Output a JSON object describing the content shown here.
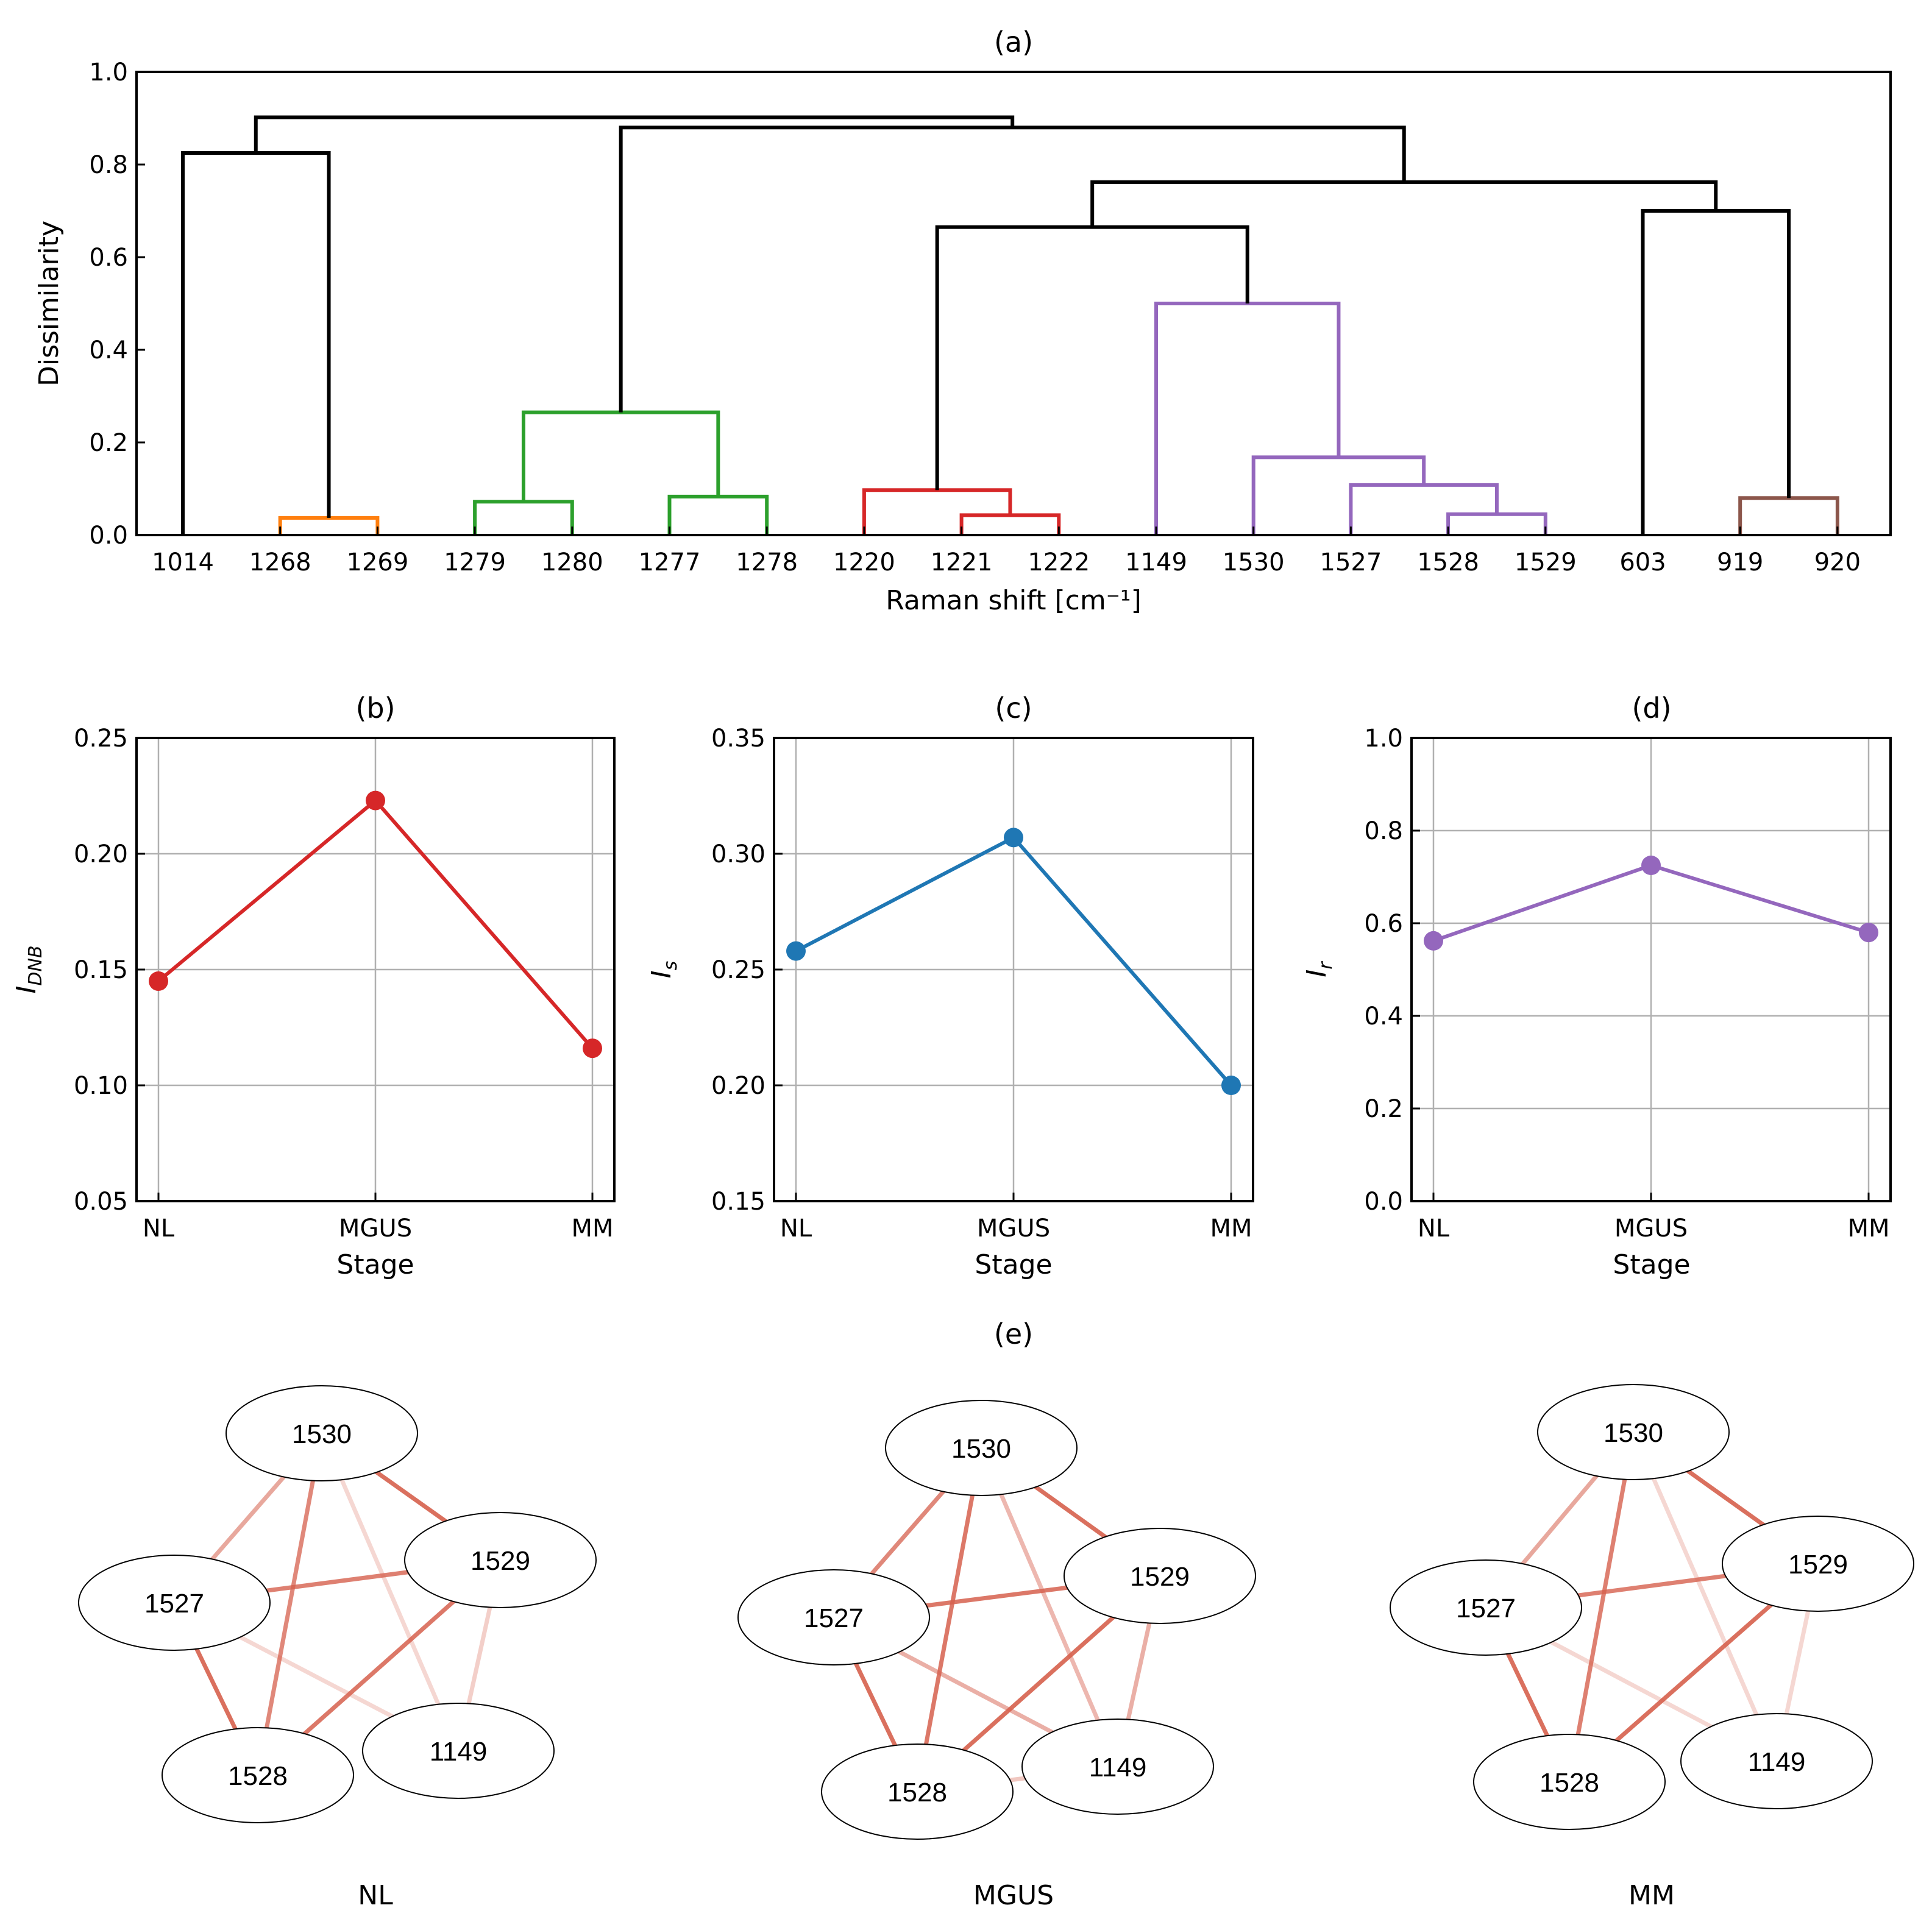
{
  "chart_data": [
    {
      "id": "a",
      "type": "dendrogram",
      "title": "(a)",
      "xlabel": "Raman shift [cm⁻¹]",
      "ylabel": "Dissimilarity",
      "ylim": [
        0,
        1.0
      ],
      "yticks": [
        0.0,
        0.2,
        0.4,
        0.6,
        0.8,
        1.0
      ],
      "ytick_labels": [
        "0.0",
        "0.2",
        "0.4",
        "0.6",
        "0.8",
        "1.0"
      ],
      "leaves": [
        "1014",
        "1268",
        "1269",
        "1279",
        "1280",
        "1277",
        "1278",
        "1220",
        "1221",
        "1222",
        "1149",
        "1530",
        "1527",
        "1528",
        "1529",
        "603",
        "919",
        "920"
      ],
      "links": [
        {
          "a": 1,
          "b": 2,
          "h": 0.037,
          "color": "#ff7f0e"
        },
        {
          "a": 3,
          "b": 4,
          "h": 0.072,
          "color": "#2ca02c"
        },
        {
          "a": 5,
          "b": 6,
          "h": 0.083,
          "color": "#2ca02c"
        },
        {
          "a": 3.5,
          "b": 5.5,
          "ha": 0.072,
          "hb": 0.083,
          "h": 0.265,
          "color": "#2ca02c"
        },
        {
          "a": 8,
          "b": 9,
          "h": 0.043,
          "color": "#d62728"
        },
        {
          "a": 7,
          "b": 8.5,
          "hb": 0.043,
          "h": 0.097,
          "color": "#d62728"
        },
        {
          "a": 13,
          "b": 14,
          "h": 0.045,
          "color": "#9467bd"
        },
        {
          "a": 12,
          "b": 13.5,
          "hb": 0.045,
          "h": 0.108,
          "color": "#9467bd"
        },
        {
          "a": 11,
          "b": 12.75,
          "hb": 0.108,
          "h": 0.168,
          "color": "#9467bd"
        },
        {
          "a": 10,
          "b": 11.875,
          "hb": 0.168,
          "h": 0.5,
          "color": "#9467bd"
        },
        {
          "a": 16,
          "b": 17,
          "h": 0.08,
          "color": "#8c564b"
        },
        {
          "a": 0,
          "b": 1.5,
          "hb": 0.037,
          "h": 0.825,
          "color": "#000000"
        },
        {
          "a": 7.75,
          "b": 10.9375,
          "ha": 0.097,
          "hb": 0.5,
          "h": 0.665,
          "color": "#000000"
        },
        {
          "a": 15,
          "b": 16.5,
          "hb": 0.08,
          "h": 0.7,
          "color": "#000000"
        },
        {
          "a": 9.34375,
          "b": 15.75,
          "ha": 0.665,
          "hb": 0.7,
          "h": 0.762,
          "color": "#000000"
        },
        {
          "a": 4.5,
          "b": 12.546875,
          "ha": 0.265,
          "hb": 0.762,
          "h": 0.88,
          "color": "#000000"
        },
        {
          "a": 0.75,
          "b": 8.5234375,
          "ha": 0.825,
          "hb": 0.88,
          "h": 0.902,
          "color": "#000000"
        }
      ]
    },
    {
      "id": "b",
      "type": "line",
      "title": "(b)",
      "xlabel": "Stage",
      "ylabel": "I",
      "ylabel_sub": "DNB",
      "categories": [
        "NL",
        "MGUS",
        "MM"
      ],
      "values": [
        0.145,
        0.223,
        0.116
      ],
      "ylim": [
        0.05,
        0.25
      ],
      "yticks": [
        0.05,
        0.1,
        0.15,
        0.2,
        0.25
      ],
      "ytick_labels": [
        "0.05",
        "0.10",
        "0.15",
        "0.20",
        "0.25"
      ],
      "color": "#d62728",
      "grid": true
    },
    {
      "id": "c",
      "type": "line",
      "title": "(c)",
      "xlabel": "Stage",
      "ylabel": "I",
      "ylabel_sub": "s",
      "categories": [
        "NL",
        "MGUS",
        "MM"
      ],
      "values": [
        0.258,
        0.307,
        0.2
      ],
      "ylim": [
        0.15,
        0.35
      ],
      "yticks": [
        0.15,
        0.2,
        0.25,
        0.3,
        0.35
      ],
      "ytick_labels": [
        "0.15",
        "0.20",
        "0.25",
        "0.30",
        "0.35"
      ],
      "color": "#1f77b4",
      "grid": true
    },
    {
      "id": "d",
      "type": "line",
      "title": "(d)",
      "xlabel": "Stage",
      "ylabel": "I",
      "ylabel_sub": "r",
      "categories": [
        "NL",
        "MGUS",
        "MM"
      ],
      "values": [
        0.562,
        0.725,
        0.58
      ],
      "ylim": [
        0.0,
        1.0
      ],
      "yticks": [
        0.0,
        0.2,
        0.4,
        0.6,
        0.8,
        1.0
      ],
      "ytick_labels": [
        "0.0",
        "0.2",
        "0.4",
        "0.6",
        "0.8",
        "1.0"
      ],
      "color": "#9467bd",
      "grid": true
    },
    {
      "id": "e",
      "type": "network",
      "title": "(e)",
      "edge_color": "#d6604d",
      "graphs": [
        {
          "label": "NL",
          "nodes": [
            "1530",
            "1529",
            "1527",
            "1528",
            "1149"
          ],
          "edges": [
            {
              "s": "1530",
              "t": "1529",
              "w": 0.9
            },
            {
              "s": "1530",
              "t": "1527",
              "w": 0.55
            },
            {
              "s": "1530",
              "t": "1528",
              "w": 0.75
            },
            {
              "s": "1530",
              "t": "1149",
              "w": 0.25
            },
            {
              "s": "1527",
              "t": "1529",
              "w": 0.8
            },
            {
              "s": "1527",
              "t": "1528",
              "w": 0.9
            },
            {
              "s": "1527",
              "t": "1149",
              "w": 0.25
            },
            {
              "s": "1529",
              "t": "1528",
              "w": 0.85
            },
            {
              "s": "1529",
              "t": "1149",
              "w": 0.3
            }
          ]
        },
        {
          "label": "MGUS",
          "nodes": [
            "1530",
            "1529",
            "1527",
            "1528",
            "1149"
          ],
          "edges": [
            {
              "s": "1530",
              "t": "1529",
              "w": 0.9
            },
            {
              "s": "1530",
              "t": "1527",
              "w": 0.75
            },
            {
              "s": "1530",
              "t": "1528",
              "w": 0.85
            },
            {
              "s": "1530",
              "t": "1149",
              "w": 0.45
            },
            {
              "s": "1527",
              "t": "1529",
              "w": 0.85
            },
            {
              "s": "1527",
              "t": "1528",
              "w": 0.9
            },
            {
              "s": "1527",
              "t": "1149",
              "w": 0.5
            },
            {
              "s": "1529",
              "t": "1528",
              "w": 0.9
            },
            {
              "s": "1529",
              "t": "1149",
              "w": 0.5
            },
            {
              "s": "1528",
              "t": "1149",
              "w": 0.35
            }
          ]
        },
        {
          "label": "MM",
          "nodes": [
            "1530",
            "1529",
            "1527",
            "1528",
            "1149"
          ],
          "edges": [
            {
              "s": "1530",
              "t": "1529",
              "w": 0.9
            },
            {
              "s": "1530",
              "t": "1527",
              "w": 0.55
            },
            {
              "s": "1530",
              "t": "1528",
              "w": 0.8
            },
            {
              "s": "1530",
              "t": "1149",
              "w": 0.25
            },
            {
              "s": "1527",
              "t": "1529",
              "w": 0.8
            },
            {
              "s": "1527",
              "t": "1528",
              "w": 0.9
            },
            {
              "s": "1527",
              "t": "1149",
              "w": 0.25
            },
            {
              "s": "1529",
              "t": "1528",
              "w": 0.9
            },
            {
              "s": "1529",
              "t": "1149",
              "w": 0.25
            }
          ]
        }
      ]
    }
  ]
}
